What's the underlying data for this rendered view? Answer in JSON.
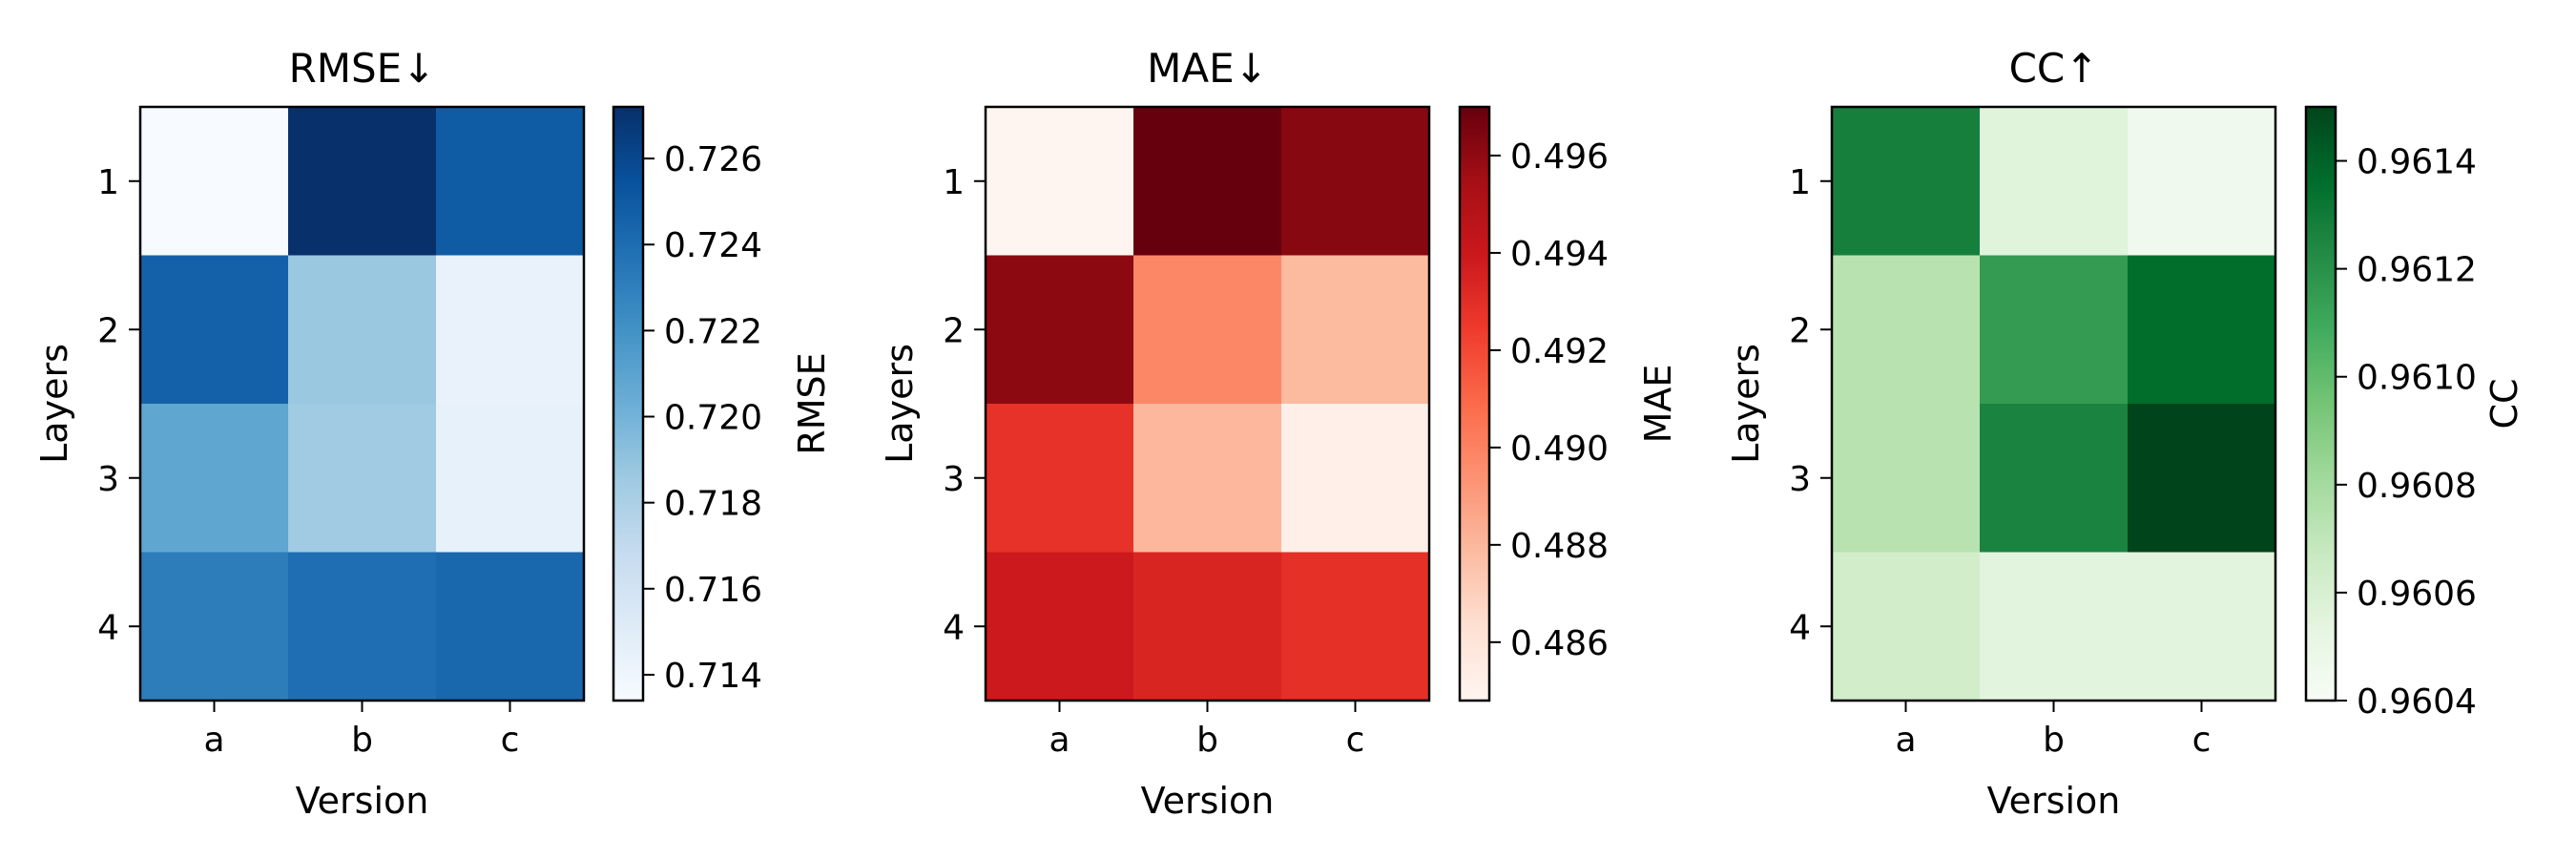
{
  "chart_data": [
    {
      "type": "heatmap",
      "title": "RMSE↓",
      "xlabel": "Version",
      "ylabel": "Layers",
      "x_categories": [
        "a",
        "b",
        "c"
      ],
      "y_categories": [
        "1",
        "2",
        "3",
        "4"
      ],
      "values": [
        [
          0.7134,
          0.7272,
          0.7249
        ],
        [
          0.7246,
          0.7187,
          0.7144
        ],
        [
          0.7208,
          0.7185,
          0.7145
        ],
        [
          0.7231,
          0.7239,
          0.7243
        ]
      ],
      "colormap": "Blues",
      "colors": [
        "#f7fbff",
        "#deebf7",
        "#c6dbef",
        "#9ecae1",
        "#6baed6",
        "#4292c6",
        "#2171b5",
        "#08519c",
        "#08306b"
      ],
      "colorbar": {
        "label": "RMSE",
        "range": [
          0.7134,
          0.7272
        ],
        "ticks": [
          0.714,
          0.716,
          0.718,
          0.72,
          0.722,
          0.724,
          0.726
        ],
        "tick_labels": [
          "0.714",
          "0.716",
          "0.718",
          "0.720",
          "0.722",
          "0.724",
          "0.726"
        ]
      }
    },
    {
      "type": "heatmap",
      "title": "MAE↓",
      "xlabel": "Version",
      "ylabel": "Layers",
      "x_categories": [
        "a",
        "b",
        "c"
      ],
      "y_categories": [
        "1",
        "2",
        "3",
        "4"
      ],
      "values": [
        [
          0.4848,
          0.497,
          0.4962
        ],
        [
          0.4961,
          0.4898,
          0.4879
        ],
        [
          0.4928,
          0.488,
          0.4852
        ],
        [
          0.4939,
          0.4934,
          0.4929
        ]
      ],
      "colormap": "Reds",
      "colors": [
        "#fff5f0",
        "#fee0d2",
        "#fcbba1",
        "#fc9272",
        "#fb6a4a",
        "#ef3b2c",
        "#cb181d",
        "#a50f15",
        "#67000d"
      ],
      "colorbar": {
        "label": "MAE",
        "range": [
          0.4848,
          0.497
        ],
        "ticks": [
          0.486,
          0.488,
          0.49,
          0.492,
          0.494,
          0.496
        ],
        "tick_labels": [
          "0.486",
          "0.488",
          "0.490",
          "0.492",
          "0.494",
          "0.496"
        ]
      }
    },
    {
      "type": "heatmap",
      "title": "CC↑",
      "xlabel": "Version",
      "ylabel": "Layers",
      "x_categories": [
        "a",
        "b",
        "c"
      ],
      "y_categories": [
        "1",
        "2",
        "3",
        "4"
      ],
      "values": [
        [
          0.96128,
          0.96056,
          0.96045
        ],
        [
          0.96073,
          0.96115,
          0.96136
        ],
        [
          0.96073,
          0.96126,
          0.9615
        ],
        [
          0.96063,
          0.96055,
          0.96055
        ]
      ],
      "colormap": "Greens",
      "colors": [
        "#f7fcf5",
        "#e5f5e0",
        "#c7e9c0",
        "#a1d99b",
        "#74c476",
        "#41ab5d",
        "#238b45",
        "#006d2c",
        "#00441b"
      ],
      "colorbar": {
        "label": "CC",
        "range": [
          0.9604,
          0.9615
        ],
        "ticks": [
          0.9604,
          0.9606,
          0.9608,
          0.961,
          0.9612,
          0.9614
        ],
        "tick_labels": [
          "0.9604",
          "0.9606",
          "0.9608",
          "0.9610",
          "0.9612",
          "0.9614"
        ]
      }
    }
  ]
}
